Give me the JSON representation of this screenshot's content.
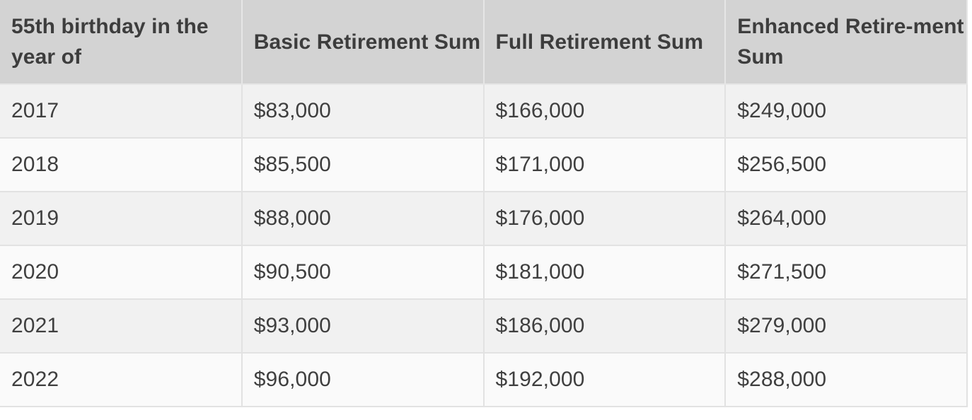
{
  "table": {
    "headers": [
      "55th birthday in the year of",
      "Basic Retirement Sum",
      "Full Retirement Sum",
      "Enhanced Retire-ment Sum"
    ],
    "rows": [
      [
        "2017",
        "$83,000",
        "$166,000",
        "$249,000"
      ],
      [
        "2018",
        "$85,500",
        "$171,000",
        "$256,500"
      ],
      [
        "2019",
        "$88,000",
        "$176,000",
        "$264,000"
      ],
      [
        "2020",
        "$90,500",
        "$181,000",
        "$271,500"
      ],
      [
        "2021",
        "$93,000",
        "$186,000",
        "$279,000"
      ],
      [
        "2022",
        "$96,000",
        "$192,000",
        "$288,000"
      ]
    ]
  }
}
